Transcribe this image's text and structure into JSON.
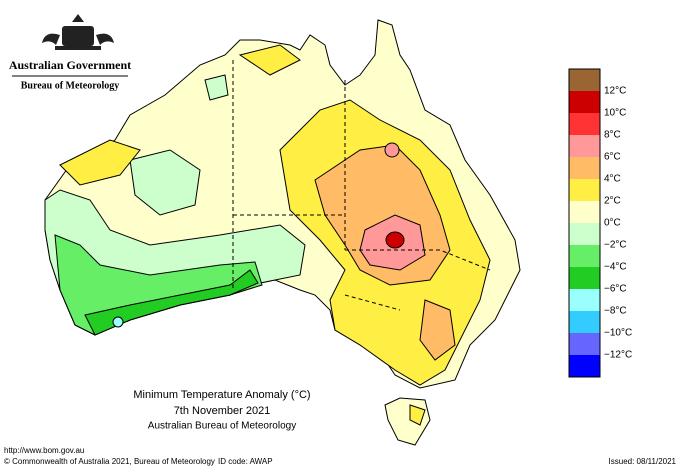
{
  "header": {
    "government": "Australian Government",
    "agency": "Bureau of Meteorology"
  },
  "map": {
    "title": "Minimum Temperature Anomaly (°C)",
    "date": "7th November 2021",
    "source": "Australian Bureau of Meteorology"
  },
  "legend": {
    "colors": [
      "#996633",
      "#cc0000",
      "#ff3333",
      "#ff9999",
      "#ffbb66",
      "#ffee44",
      "#ffffcc",
      "#ccffcc",
      "#66ee66",
      "#22cc22",
      "#99ffff",
      "#33ccff",
      "#6666ff",
      "#0000ff"
    ],
    "labels": [
      "12°C",
      "10°C",
      "8°C",
      "6°C",
      "4°C",
      "2°C",
      "0°C",
      "−2°C",
      "−4°C",
      "−6°C",
      "−8°C",
      "−10°C",
      "−12°C"
    ]
  },
  "footer": {
    "url": "http://www.bom.gov.au",
    "copyright": "© Commonwealth of Australia 2021, Bureau of Meteorology",
    "id_code": "ID code: AWAP",
    "issued": "Issued: 08/11/2021"
  }
}
